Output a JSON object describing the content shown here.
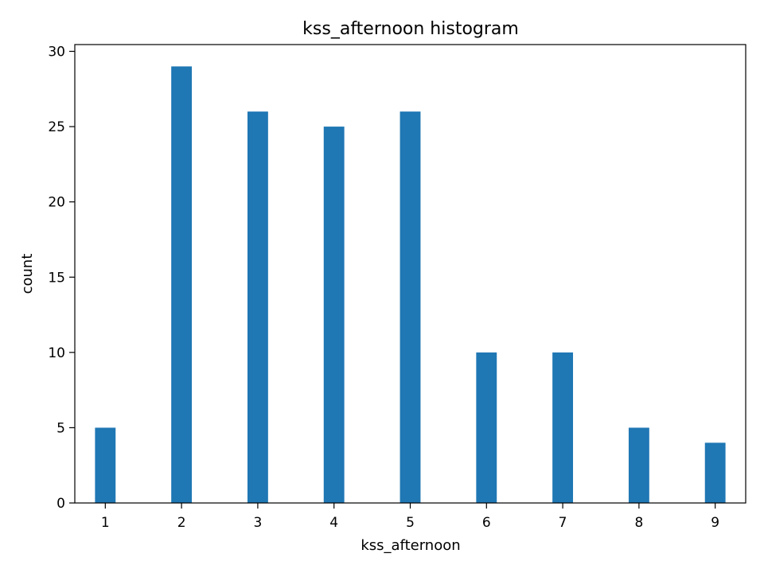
{
  "chart_data": {
    "type": "bar",
    "title": "kss_afternoon histogram",
    "xlabel": "kss_afternoon",
    "ylabel": "count",
    "x": [
      1,
      2,
      3,
      4,
      5,
      6,
      7,
      8,
      9
    ],
    "values": [
      5,
      29,
      26,
      25,
      26,
      10,
      10,
      5,
      4
    ],
    "xticks": [
      1,
      2,
      3,
      4,
      5,
      6,
      7,
      8,
      9
    ],
    "yticks": [
      0,
      5,
      10,
      15,
      20,
      25,
      30
    ],
    "xlim": [
      0.6,
      9.4
    ],
    "ylim": [
      0,
      30.45
    ],
    "bar_color": "#1f77b4",
    "grid": false,
    "legend": "none"
  }
}
